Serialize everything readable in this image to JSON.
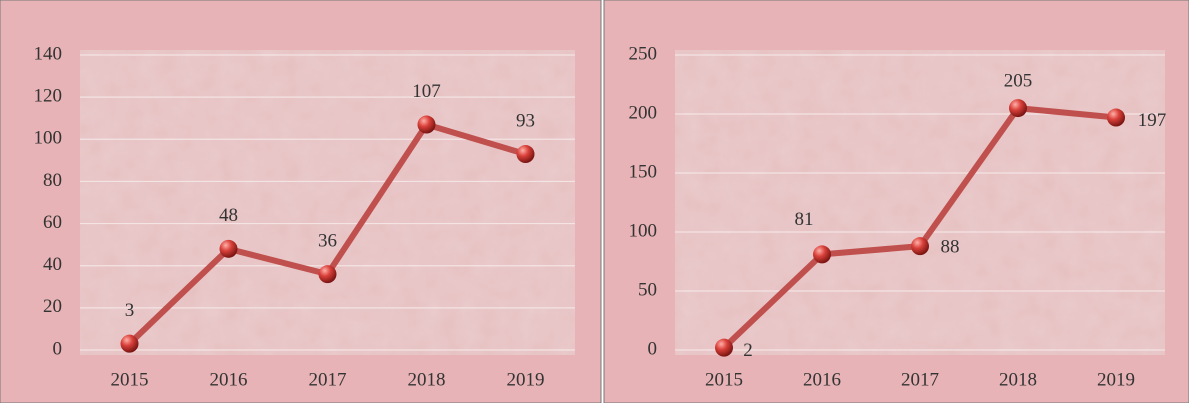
{
  "chart_data": [
    {
      "type": "line",
      "categories": [
        "2015",
        "2016",
        "2017",
        "2018",
        "2019"
      ],
      "values": [
        3,
        48,
        36,
        107,
        93
      ],
      "color": "#c0504d",
      "ylim": [
        0,
        140
      ],
      "yticks": [
        0,
        20,
        40,
        60,
        80,
        100,
        120,
        140
      ],
      "grid": true
    },
    {
      "type": "line",
      "categories": [
        "2015",
        "2016",
        "2017",
        "2018",
        "2019"
      ],
      "values": [
        2,
        81,
        88,
        205,
        197
      ],
      "color": "#c0504d",
      "ylim": [
        0,
        250
      ],
      "yticks": [
        0,
        50,
        100,
        150,
        200,
        250
      ],
      "grid": true
    }
  ]
}
